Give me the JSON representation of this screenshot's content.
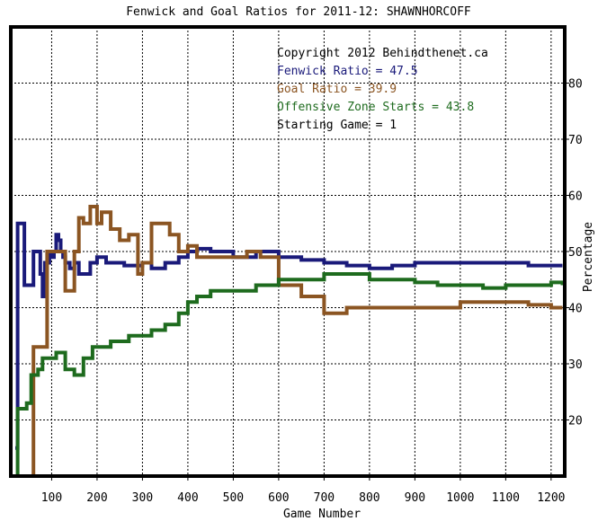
{
  "chart_data": {
    "type": "line",
    "title": "Fenwick and Goal Ratios for 2011-12: SHAWNHORCOFF",
    "xlabel": "Game Number",
    "ylabel": "Percentage",
    "xlim": [
      10,
      1230
    ],
    "ylim": [
      10,
      90
    ],
    "x_ticks": [
      100,
      200,
      300,
      400,
      500,
      600,
      700,
      800,
      900,
      1000,
      1100,
      1200
    ],
    "x_tick_labels": [
      "100",
      "200",
      "300",
      "400",
      "500",
      "600",
      "700",
      "800",
      "900",
      "1000",
      "1100",
      "1200"
    ],
    "y_ticks": [
      20,
      30,
      40,
      50,
      60,
      70,
      80
    ],
    "y_tick_labels": [
      "20",
      "30",
      "40",
      "50",
      "60",
      "70",
      "80"
    ],
    "grid": true,
    "legend_position": "top-right",
    "annotations": [
      {
        "text": "Copyright 2012 Behindthenet.ca",
        "color": "#000000"
      },
      {
        "text": "Fenwick Ratio = 47.5",
        "color": "#1a1a7a"
      },
      {
        "text": "Goal Ratio = 39.9",
        "color": "#8b5522"
      },
      {
        "text": "Offensive Zone Starts = 43.8",
        "color": "#1e6b1e"
      },
      {
        "text": "Starting Game = 1",
        "color": "#000000"
      }
    ],
    "series": [
      {
        "name": "Fenwick Ratio",
        "color": "#1a1a7a",
        "x": [
          20,
          25,
          30,
          40,
          45,
          50,
          55,
          60,
          65,
          75,
          80,
          85,
          90,
          95,
          100,
          105,
          110,
          115,
          120,
          125,
          130,
          140,
          150,
          160,
          175,
          185,
          200,
          220,
          240,
          260,
          280,
          300,
          320,
          350,
          380,
          400,
          420,
          450,
          500,
          550,
          600,
          650,
          700,
          750,
          800,
          850,
          900,
          950,
          1000,
          1050,
          1100,
          1150,
          1200,
          1225
        ],
        "y": [
          15,
          55,
          55,
          44,
          44,
          44,
          44,
          50,
          50,
          46,
          42,
          48,
          48,
          50,
          49,
          50,
          53,
          52,
          50,
          49,
          48,
          47,
          48,
          46,
          46,
          48,
          49,
          48,
          48,
          47.5,
          47.5,
          48,
          47,
          48,
          49,
          50,
          50.5,
          50,
          49,
          50,
          49,
          48.5,
          48,
          47.5,
          47,
          47.5,
          48,
          48,
          48,
          48,
          48,
          47.5,
          47.5,
          47.5
        ]
      },
      {
        "name": "Goal Ratio",
        "color": "#8b5522",
        "x": [
          50,
          60,
          75,
          90,
          100,
          110,
          130,
          140,
          150,
          160,
          170,
          185,
          195,
          200,
          210,
          230,
          250,
          270,
          290,
          300,
          320,
          340,
          360,
          380,
          400,
          420,
          450,
          500,
          530,
          560,
          600,
          650,
          700,
          750,
          800,
          850,
          900,
          1000,
          1100,
          1150,
          1200,
          1225
        ],
        "y": [
          10,
          33,
          33,
          50,
          50,
          50,
          43,
          43,
          50,
          56,
          55,
          58,
          58,
          55,
          57,
          54,
          52,
          53,
          46,
          48,
          55,
          55,
          53,
          50,
          51,
          49,
          49,
          49,
          50,
          49,
          44,
          42,
          39,
          40,
          40,
          40,
          40,
          41,
          41,
          40.5,
          40,
          40
        ]
      },
      {
        "name": "Offensive Zone Starts",
        "color": "#1e6b1e",
        "x": [
          20,
          25,
          45,
          55,
          70,
          80,
          90,
          100,
          110,
          130,
          150,
          170,
          190,
          210,
          230,
          250,
          270,
          300,
          320,
          350,
          380,
          400,
          420,
          450,
          500,
          550,
          600,
          650,
          700,
          750,
          800,
          850,
          900,
          950,
          1000,
          1050,
          1100,
          1150,
          1200,
          1225
        ],
        "y": [
          10,
          22,
          23,
          28,
          29,
          31,
          31,
          31,
          32,
          29,
          28,
          31,
          33,
          33,
          34,
          34,
          35,
          35,
          36,
          37,
          39,
          41,
          42,
          43,
          43,
          44,
          45,
          45,
          46,
          46,
          45,
          45,
          44.5,
          44,
          44,
          43.5,
          44,
          44,
          44.5,
          44
        ]
      }
    ]
  }
}
